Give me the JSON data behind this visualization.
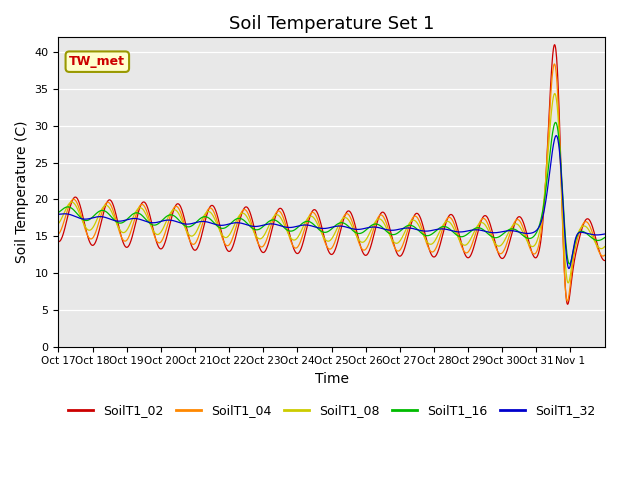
{
  "title": "Soil Temperature Set 1",
  "xlabel": "Time",
  "ylabel": "Soil Temperature (C)",
  "ylim": [
    0,
    42
  ],
  "yticks": [
    0,
    5,
    10,
    15,
    20,
    25,
    30,
    35,
    40
  ],
  "series": [
    "SoilT1_02",
    "SoilT1_04",
    "SoilT1_08",
    "SoilT1_16",
    "SoilT1_32"
  ],
  "colors": [
    "#cc0000",
    "#ff8800",
    "#cccc00",
    "#00bb00",
    "#0000cc"
  ],
  "xtick_labels": [
    "Oct 17",
    "Oct 18",
    "Oct 19",
    "Oct 20",
    "Oct 21",
    "Oct 22",
    "Oct 23",
    "Oct 24",
    "Oct 25",
    "Oct 26",
    "Oct 27",
    "Oct 28",
    "Oct 29",
    "Oct 30",
    "Oct 31",
    "Nov 1"
  ],
  "annotation_text": "TW_met",
  "bg_color": "#e8e8e8",
  "title_fontsize": 13,
  "axis_fontsize": 10,
  "legend_fontsize": 9
}
